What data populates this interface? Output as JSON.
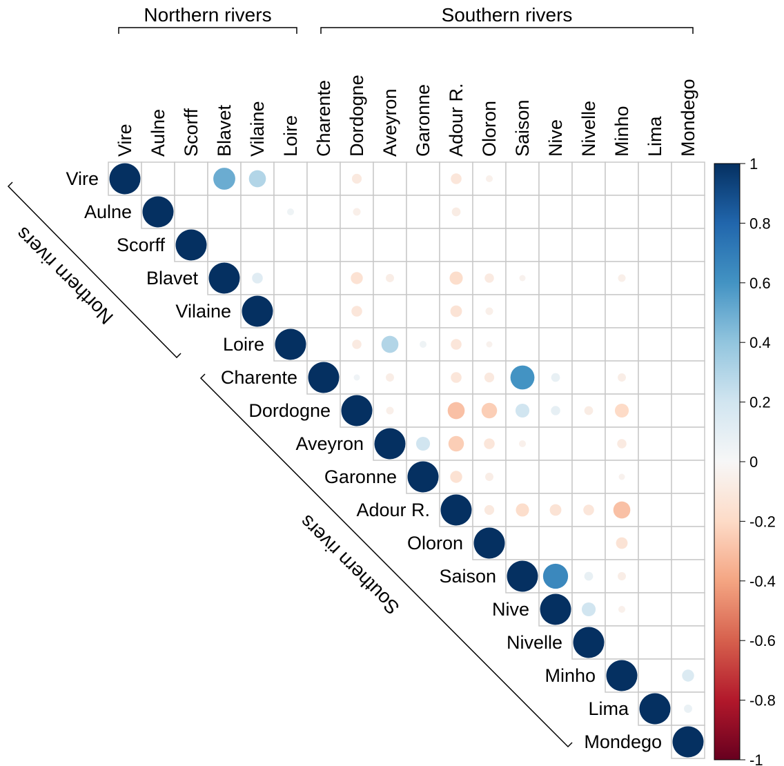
{
  "chart_data": {
    "type": "heatmap",
    "subtype": "correlation-upper-triangle-circles",
    "title": "",
    "xlabel": "",
    "ylabel": "",
    "variables": [
      "Vire",
      "Aulne",
      "Scorff",
      "Blavet",
      "Vilaine",
      "Loire",
      "Charente",
      "Dordogne",
      "Aveyron",
      "Garonne",
      "Adour R.",
      "Oloron",
      "Saison",
      "Nive",
      "Nivelle",
      "Minho",
      "Lima",
      "Mondego"
    ],
    "groups": [
      {
        "name": "Northern rivers",
        "members": [
          "Vire",
          "Aulne",
          "Scorff",
          "Blavet",
          "Vilaine",
          "Loire"
        ]
      },
      {
        "name": "Southern rivers",
        "members": [
          "Charente",
          "Dordogne",
          "Aveyron",
          "Garonne",
          "Adour R.",
          "Oloron",
          "Saison",
          "Nive",
          "Nivelle",
          "Minho",
          "Lima",
          "Mondego"
        ]
      }
    ],
    "diagonal_value": 1,
    "colorbar": {
      "min": -1,
      "max": 1,
      "ticks": [
        "1",
        "0.8",
        "0.6",
        "0.4",
        "0.2",
        "0",
        "-0.2",
        "-0.4",
        "-0.6",
        "-0.8",
        "-1"
      ],
      "placement": "right"
    },
    "colors": {
      "strong_positive": "#053061",
      "mid_positive": "#4393c3",
      "neutral": "#f7f7f7",
      "mid_negative": "#d6604d",
      "strong_negative": "#67001f"
    },
    "values": [
      {
        "row": "Vire",
        "col": "Blavet",
        "value": 0.5
      },
      {
        "row": "Vire",
        "col": "Vilaine",
        "value": 0.3
      },
      {
        "row": "Vire",
        "col": "Dordogne",
        "value": -0.1
      },
      {
        "row": "Vire",
        "col": "Adour R.",
        "value": -0.12
      },
      {
        "row": "Vire",
        "col": "Oloron",
        "value": -0.05
      },
      {
        "row": "Aulne",
        "col": "Loire",
        "value": 0.05
      },
      {
        "row": "Aulne",
        "col": "Dordogne",
        "value": -0.06
      },
      {
        "row": "Aulne",
        "col": "Adour R.",
        "value": -0.08
      },
      {
        "row": "Blavet",
        "col": "Vilaine",
        "value": 0.12
      },
      {
        "row": "Blavet",
        "col": "Dordogne",
        "value": -0.15
      },
      {
        "row": "Blavet",
        "col": "Aveyron",
        "value": -0.07
      },
      {
        "row": "Blavet",
        "col": "Adour R.",
        "value": -0.18
      },
      {
        "row": "Blavet",
        "col": "Oloron",
        "value": -0.09
      },
      {
        "row": "Blavet",
        "col": "Saison",
        "value": -0.04
      },
      {
        "row": "Blavet",
        "col": "Minho",
        "value": -0.06
      },
      {
        "row": "Vilaine",
        "col": "Dordogne",
        "value": -0.12
      },
      {
        "row": "Vilaine",
        "col": "Adour R.",
        "value": -0.14
      },
      {
        "row": "Vilaine",
        "col": "Oloron",
        "value": -0.06
      },
      {
        "row": "Loire",
        "col": "Dordogne",
        "value": -0.09
      },
      {
        "row": "Loire",
        "col": "Aveyron",
        "value": 0.3
      },
      {
        "row": "Loire",
        "col": "Garonne",
        "value": 0.05
      },
      {
        "row": "Loire",
        "col": "Adour R.",
        "value": -0.12
      },
      {
        "row": "Loire",
        "col": "Oloron",
        "value": -0.04
      },
      {
        "row": "Charente",
        "col": "Dordogne",
        "value": 0.04
      },
      {
        "row": "Charente",
        "col": "Aveyron",
        "value": -0.07
      },
      {
        "row": "Charente",
        "col": "Adour R.",
        "value": -0.12
      },
      {
        "row": "Charente",
        "col": "Oloron",
        "value": -0.1
      },
      {
        "row": "Charente",
        "col": "Saison",
        "value": 0.6
      },
      {
        "row": "Charente",
        "col": "Nive",
        "value": 0.08
      },
      {
        "row": "Charente",
        "col": "Minho",
        "value": -0.07
      },
      {
        "row": "Dordogne",
        "col": "Aveyron",
        "value": -0.06
      },
      {
        "row": "Dordogne",
        "col": "Adour R.",
        "value": -0.3
      },
      {
        "row": "Dordogne",
        "col": "Oloron",
        "value": -0.25
      },
      {
        "row": "Dordogne",
        "col": "Saison",
        "value": 0.2
      },
      {
        "row": "Dordogne",
        "col": "Nive",
        "value": 0.09
      },
      {
        "row": "Dordogne",
        "col": "Nivelle",
        "value": -0.08
      },
      {
        "row": "Dordogne",
        "col": "Minho",
        "value": -0.2
      },
      {
        "row": "Aveyron",
        "col": "Garonne",
        "value": 0.2
      },
      {
        "row": "Aveyron",
        "col": "Adour R.",
        "value": -0.25
      },
      {
        "row": "Aveyron",
        "col": "Oloron",
        "value": -0.12
      },
      {
        "row": "Aveyron",
        "col": "Saison",
        "value": -0.05
      },
      {
        "row": "Aveyron",
        "col": "Minho",
        "value": -0.09
      },
      {
        "row": "Garonne",
        "col": "Adour R.",
        "value": -0.15
      },
      {
        "row": "Garonne",
        "col": "Oloron",
        "value": -0.07
      },
      {
        "row": "Garonne",
        "col": "Minho",
        "value": -0.04
      },
      {
        "row": "Adour R.",
        "col": "Oloron",
        "value": -0.1
      },
      {
        "row": "Adour R.",
        "col": "Saison",
        "value": -0.18
      },
      {
        "row": "Adour R.",
        "col": "Nive",
        "value": -0.14
      },
      {
        "row": "Adour R.",
        "col": "Nivelle",
        "value": -0.12
      },
      {
        "row": "Adour R.",
        "col": "Minho",
        "value": -0.3
      },
      {
        "row": "Oloron",
        "col": "Minho",
        "value": -0.14
      },
      {
        "row": "Saison",
        "col": "Nive",
        "value": 0.65
      },
      {
        "row": "Saison",
        "col": "Nivelle",
        "value": 0.08
      },
      {
        "row": "Saison",
        "col": "Minho",
        "value": -0.07
      },
      {
        "row": "Nive",
        "col": "Nivelle",
        "value": 0.2
      },
      {
        "row": "Nive",
        "col": "Minho",
        "value": -0.05
      },
      {
        "row": "Minho",
        "col": "Mondego",
        "value": 0.15
      },
      {
        "row": "Lima",
        "col": "Mondego",
        "value": 0.07
      }
    ]
  }
}
